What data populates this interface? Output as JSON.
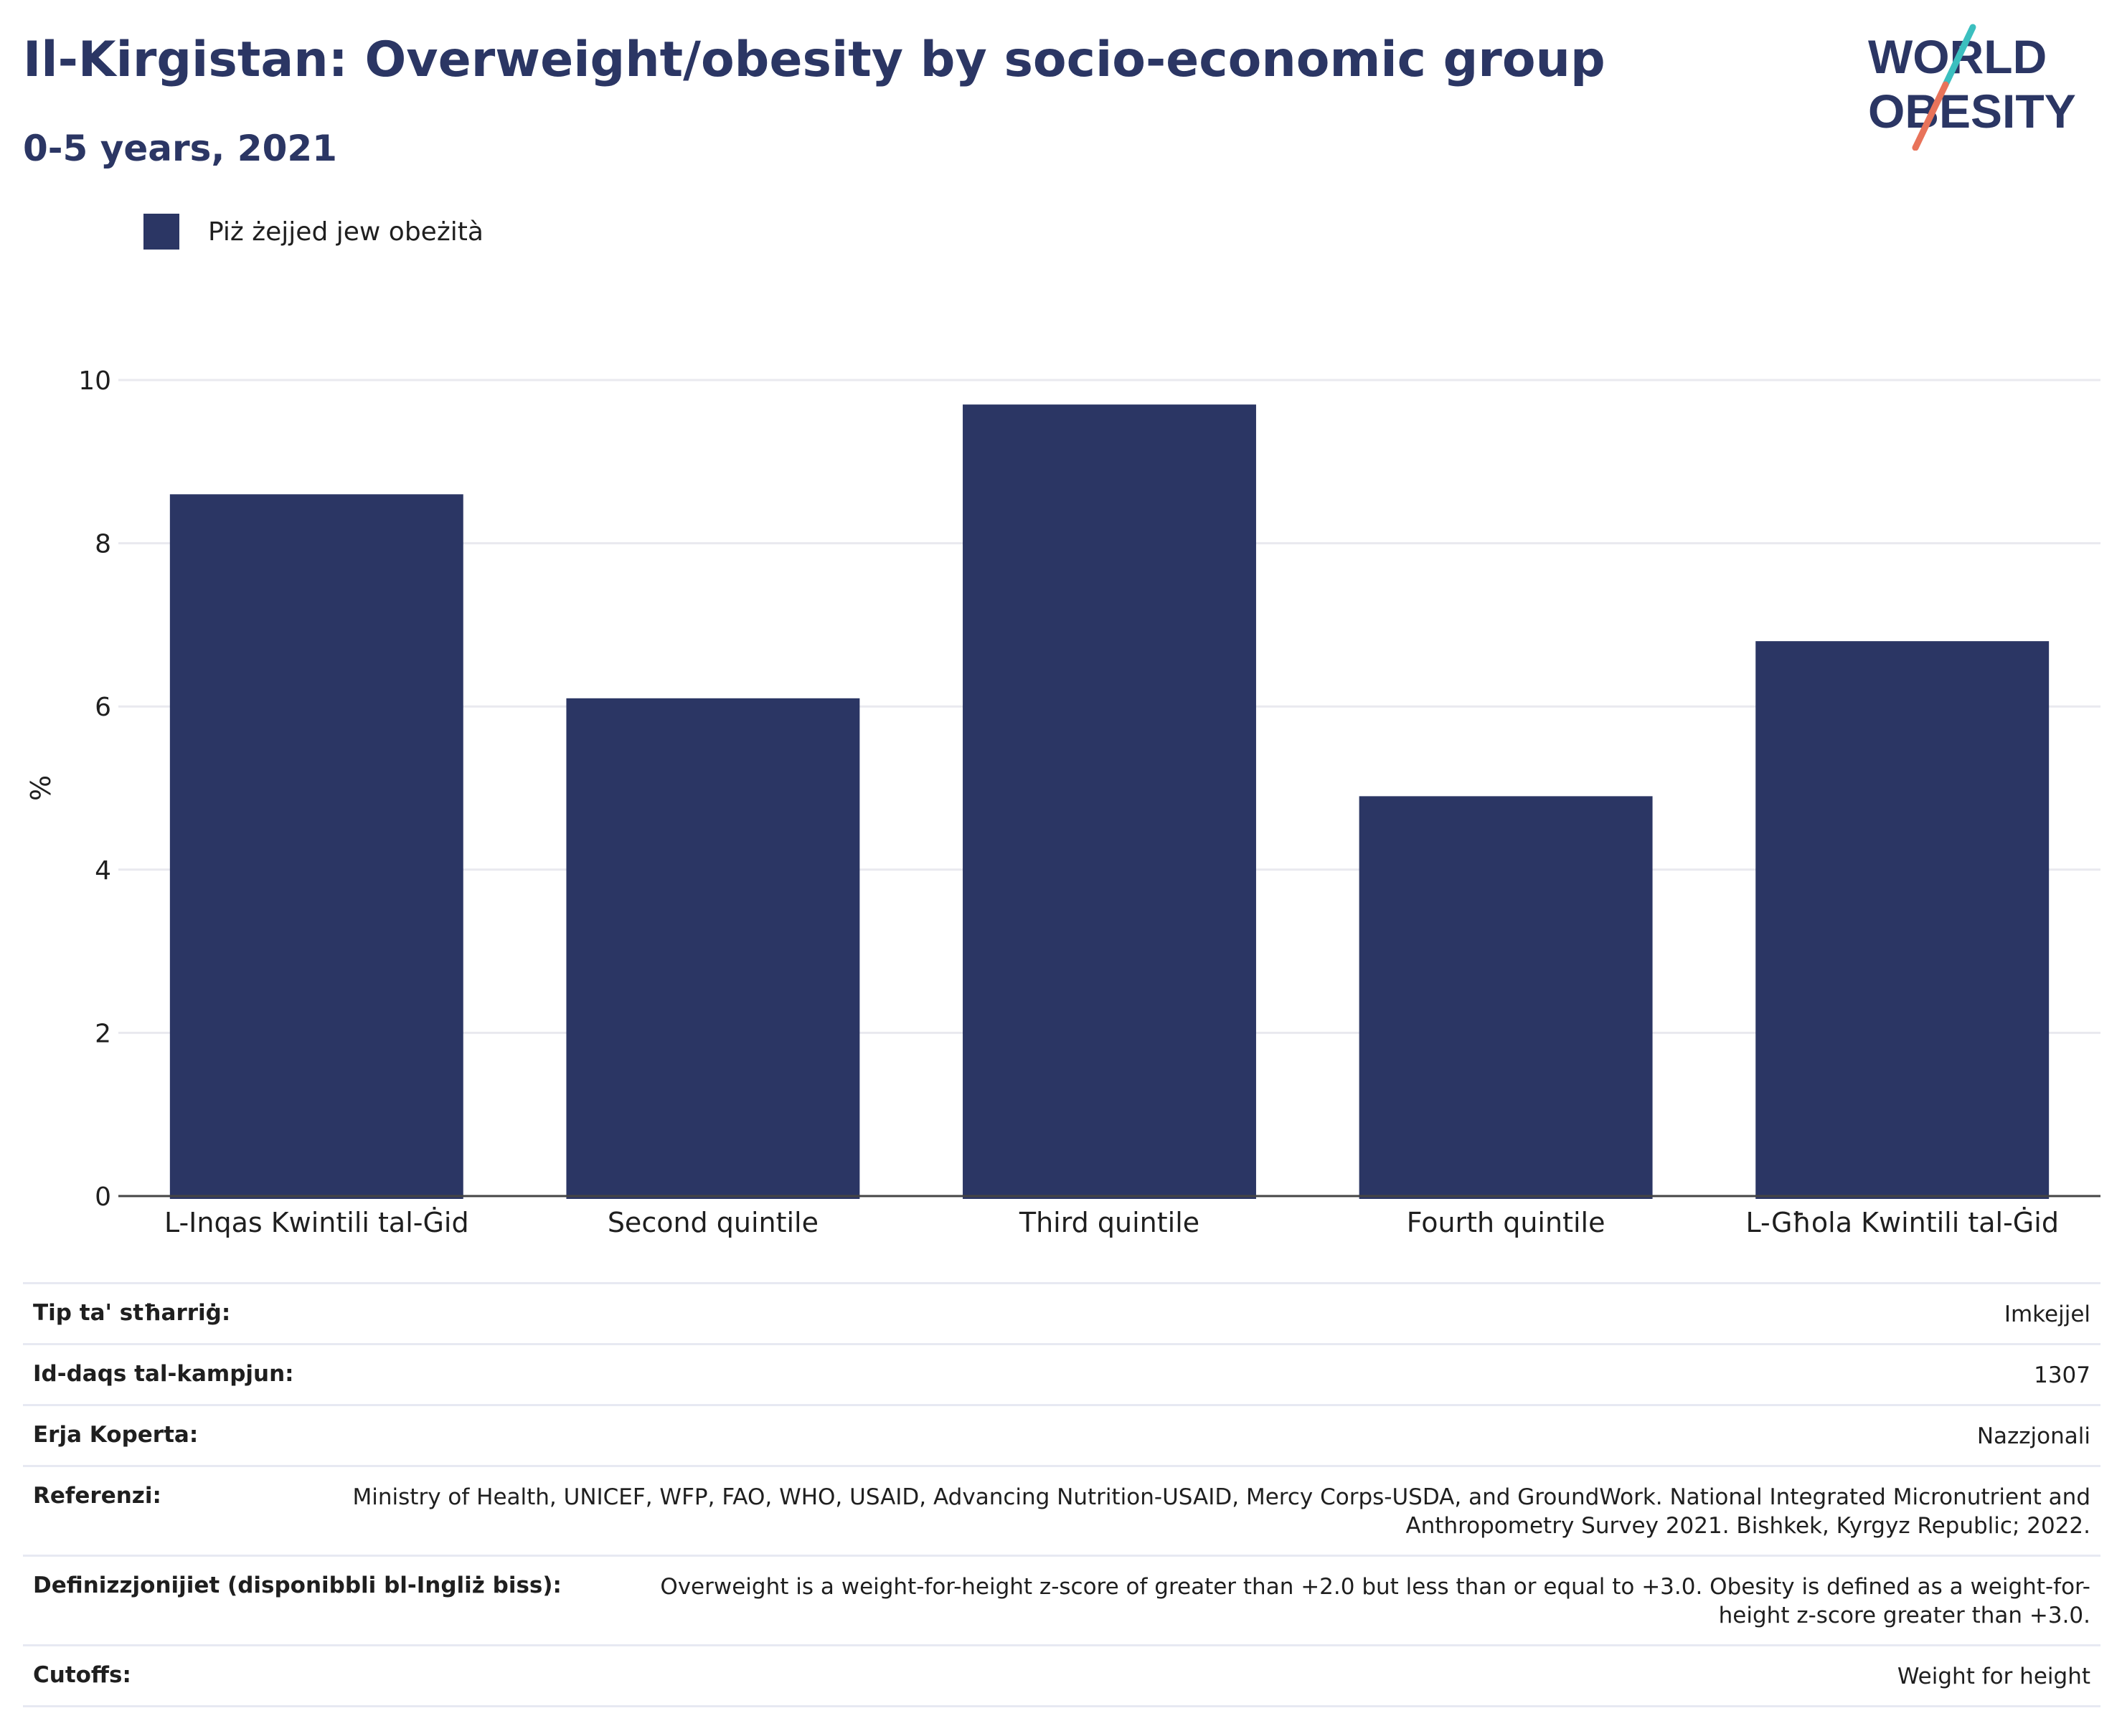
{
  "header": {
    "title": "Il-Kirgistan: Overweight/obesity by socio-economic group",
    "subtitle": "0-5 years, 2021"
  },
  "logo": {
    "line1": "WORLD",
    "line2": "OBESITY",
    "colors": {
      "text": "#2b3664",
      "slash_top": "#3bbfbf",
      "slash_bottom": "#e8735a"
    }
  },
  "legend": {
    "label": "Piż żejjed jew obeżità",
    "color": "#2b3664"
  },
  "chart_data": {
    "type": "bar",
    "categories": [
      "L-Inqas Kwintili tal-Ġid",
      "Second quintile",
      "Third quintile",
      "Fourth quintile",
      "L-Għola Kwintili tal-Ġid"
    ],
    "series": [
      {
        "name": "Piż żejjed jew obeżità",
        "values": [
          8.6,
          6.1,
          9.7,
          4.9,
          6.8
        ],
        "color": "#2b3664"
      }
    ],
    "ylabel": "%",
    "xlabel": "",
    "ylim": [
      0,
      10
    ],
    "yticks": [
      0,
      2,
      4,
      6,
      8,
      10
    ],
    "grid": true,
    "legend_position": "top-left"
  },
  "meta": [
    {
      "label": "Tip ta' stħarriġ:",
      "value": "Imkejjel"
    },
    {
      "label": "Id-daqs tal-kampjun:",
      "value": "1307"
    },
    {
      "label": "Erja Koperta:",
      "value": "Nazzjonali"
    },
    {
      "label": "Referenzi:",
      "value": "Ministry of Health, UNICEF, WFP, FAO, WHO, USAID, Advancing Nutrition-USAID, Mercy Corps-USDA, and GroundWork. National Integrated Micronutrient and Anthropometry Survey 2021. Bishkek, Kyrgyz Republic; 2022."
    },
    {
      "label": "Definizzjonijiet (disponibbli bl-Ingliż biss):",
      "value": "Overweight is a weight-for-height z-score of greater than +2.0 but less than or equal to +3.0. Obesity is defined as a weight-for-height z-score greater than +3.0."
    },
    {
      "label": "Cutoffs:",
      "value": "Weight for height"
    }
  ]
}
